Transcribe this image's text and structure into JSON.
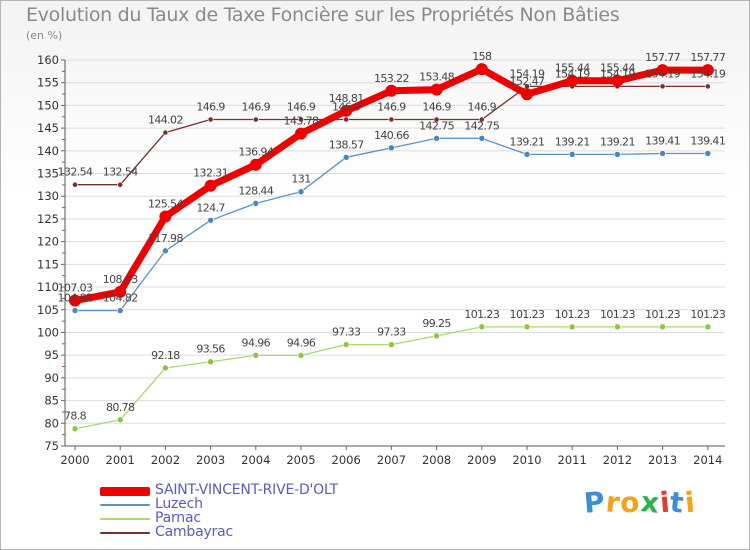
{
  "title": "Evolution du Taux de Taxe Foncière sur les Propriétés Non Bâties",
  "subtitle": "(en %)",
  "brand": {
    "letters": [
      "P",
      "r",
      "o",
      "x",
      "i",
      "t",
      "i"
    ],
    "colors": [
      "#3a8fd8",
      "#f4a11b",
      "#f4a11b",
      "#2bb34a",
      "#e23a2e",
      "#3a8fd8",
      "#f4a11b"
    ]
  },
  "chart_data": {
    "type": "line",
    "title": "Evolution du Taux de Taxe Foncière sur les Propriétés Non Bâties",
    "ylabel": "(en %)",
    "xlabel": "",
    "ylim": [
      75,
      160
    ],
    "yticks": [
      75,
      80,
      85,
      90,
      95,
      100,
      105,
      110,
      115,
      120,
      125,
      130,
      135,
      140,
      145,
      150,
      155,
      160
    ],
    "categories": [
      "2000",
      "2001",
      "2002",
      "2003",
      "2004",
      "2005",
      "2006",
      "2007",
      "2008",
      "2009",
      "2010",
      "2011",
      "2012",
      "2013",
      "2014"
    ],
    "series": [
      {
        "name": "Cambayrac",
        "color": "#7a2e2e",
        "point_color": "#7a2e2e",
        "values": [
          132.54,
          132.54,
          144.02,
          146.9,
          146.9,
          146.9,
          146.9,
          146.9,
          146.9,
          146.9,
          154.19,
          154.19,
          154.19,
          154.19,
          154.19
        ],
        "labels": [
          "132.54",
          "132.54",
          "144.02",
          "146.9",
          "146.9",
          "146.9",
          "146.9",
          "146.9",
          "146.9",
          "146.9",
          "154.19",
          "154.19",
          "154.19",
          "154.19",
          "154.19"
        ]
      },
      {
        "name": "Luzech",
        "color": "#5b93c7",
        "point_color": "#4a86c4",
        "values": [
          104.82,
          104.82,
          117.98,
          124.7,
          128.44,
          131,
          138.57,
          140.66,
          142.75,
          142.75,
          139.21,
          139.21,
          139.21,
          139.41,
          139.41
        ],
        "labels": [
          "104.82",
          "104.82",
          "117.98",
          "124.7",
          "128.44",
          "131",
          "138.57",
          "140.66",
          "142.75",
          "142.75",
          "139.21",
          "139.21",
          "139.21",
          "139.41",
          "139.41"
        ]
      },
      {
        "name": "Parnac",
        "color": "#a9d86e",
        "point_color": "#8cc63f",
        "values": [
          78.8,
          80.78,
          92.18,
          93.56,
          94.96,
          94.96,
          97.33,
          97.33,
          99.25,
          101.23,
          101.23,
          101.23,
          101.23,
          101.23,
          101.23
        ],
        "labels": [
          "78.8",
          "80.78",
          "92.18",
          "93.56",
          "94.96",
          "94.96",
          "97.33",
          "97.33",
          "99.25",
          "101.23",
          "101.23",
          "101.23",
          "101.23",
          "101.23",
          "101.23"
        ]
      },
      {
        "name": "SAINT-VINCENT-RIVE-D'OLT",
        "color": "#ee0000",
        "point_color": "#ee0000",
        "values": [
          107.03,
          108.93,
          125.54,
          132.31,
          136.94,
          143.78,
          148.81,
          153.22,
          153.48,
          158,
          152.47,
          155.44,
          155.44,
          157.77,
          157.77
        ],
        "labels": [
          "107.03",
          "108.93",
          "125.54",
          "132.31",
          "136.94",
          "143.78",
          "148.81",
          "153.22",
          "153.48",
          "158",
          "152.47",
          "155.44",
          "155.44",
          "157.77",
          "157.77"
        ]
      }
    ],
    "legend_order": [
      "SAINT-VINCENT-RIVE-D'OLT",
      "Luzech",
      "Parnac",
      "Cambayrac"
    ]
  }
}
